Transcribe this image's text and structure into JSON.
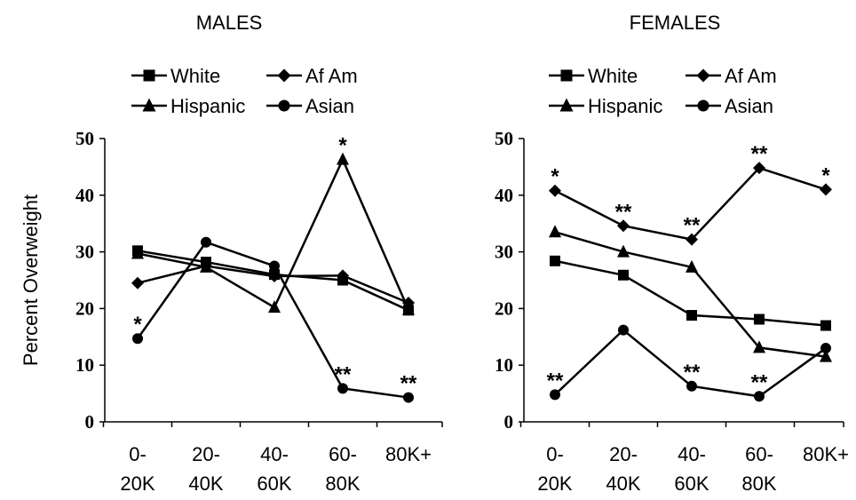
{
  "chart_data": [
    {
      "type": "line",
      "title": "MALES",
      "xlabel": "",
      "ylabel": "Percent Overweight",
      "ylim": [
        0,
        50
      ],
      "yticks": [
        "0",
        "10",
        "20",
        "30",
        "40",
        "50"
      ],
      "categories": [
        "0-\n20K",
        "20-\n40K",
        "40-\n60K",
        "60-\n80K",
        "80K+"
      ],
      "legend_position": "top",
      "series": [
        {
          "name": "White",
          "marker": "square",
          "values": [
            30.2,
            28.2,
            26.0,
            25.0,
            19.7
          ]
        },
        {
          "name": "Af Am",
          "marker": "diamond",
          "values": [
            24.5,
            27.5,
            25.7,
            25.8,
            21.0
          ]
        },
        {
          "name": "Hispanic",
          "marker": "triangle",
          "values": [
            29.7,
            27.3,
            20.2,
            46.3,
            19.8
          ]
        },
        {
          "name": "Asian",
          "marker": "circle",
          "values": [
            14.7,
            31.7,
            27.5,
            5.9,
            4.3
          ]
        }
      ],
      "annotations": [
        {
          "text": "*",
          "category": 0,
          "value": 14.7
        },
        {
          "text": "*",
          "category": 3,
          "value": 46.3
        },
        {
          "text": "**",
          "category": 3,
          "value": 5.9
        },
        {
          "text": "**",
          "category": 4,
          "value": 4.3
        }
      ]
    },
    {
      "type": "line",
      "title": "FEMALES",
      "xlabel": "",
      "ylabel": "",
      "ylim": [
        0,
        50
      ],
      "yticks": [
        "0",
        "10",
        "20",
        "30",
        "40",
        "50"
      ],
      "categories": [
        "0-\n20K",
        "20-\n40K",
        "40-\n60K",
        "60-\n80K",
        "80K+"
      ],
      "legend_position": "top",
      "series": [
        {
          "name": "White",
          "marker": "square",
          "values": [
            28.4,
            25.9,
            18.8,
            18.1,
            17.0
          ]
        },
        {
          "name": "Af Am",
          "marker": "diamond",
          "values": [
            40.8,
            34.6,
            32.2,
            44.8,
            41.0
          ]
        },
        {
          "name": "Hispanic",
          "marker": "triangle",
          "values": [
            33.5,
            30.0,
            27.3,
            13.1,
            11.5
          ]
        },
        {
          "name": "Asian",
          "marker": "circle",
          "values": [
            4.8,
            16.2,
            6.3,
            4.5,
            13.0
          ]
        }
      ],
      "annotations": [
        {
          "text": "*",
          "category": 0,
          "value": 40.8
        },
        {
          "text": "**",
          "category": 1,
          "value": 34.6
        },
        {
          "text": "**",
          "category": 2,
          "value": 32.2
        },
        {
          "text": "**",
          "category": 3,
          "value": 44.8
        },
        {
          "text": "*",
          "category": 4,
          "value": 41.0
        },
        {
          "text": "**",
          "category": 0,
          "value": 4.8
        },
        {
          "text": "**",
          "category": 2,
          "value": 6.3
        },
        {
          "text": "**",
          "category": 3,
          "value": 4.5
        }
      ]
    }
  ]
}
